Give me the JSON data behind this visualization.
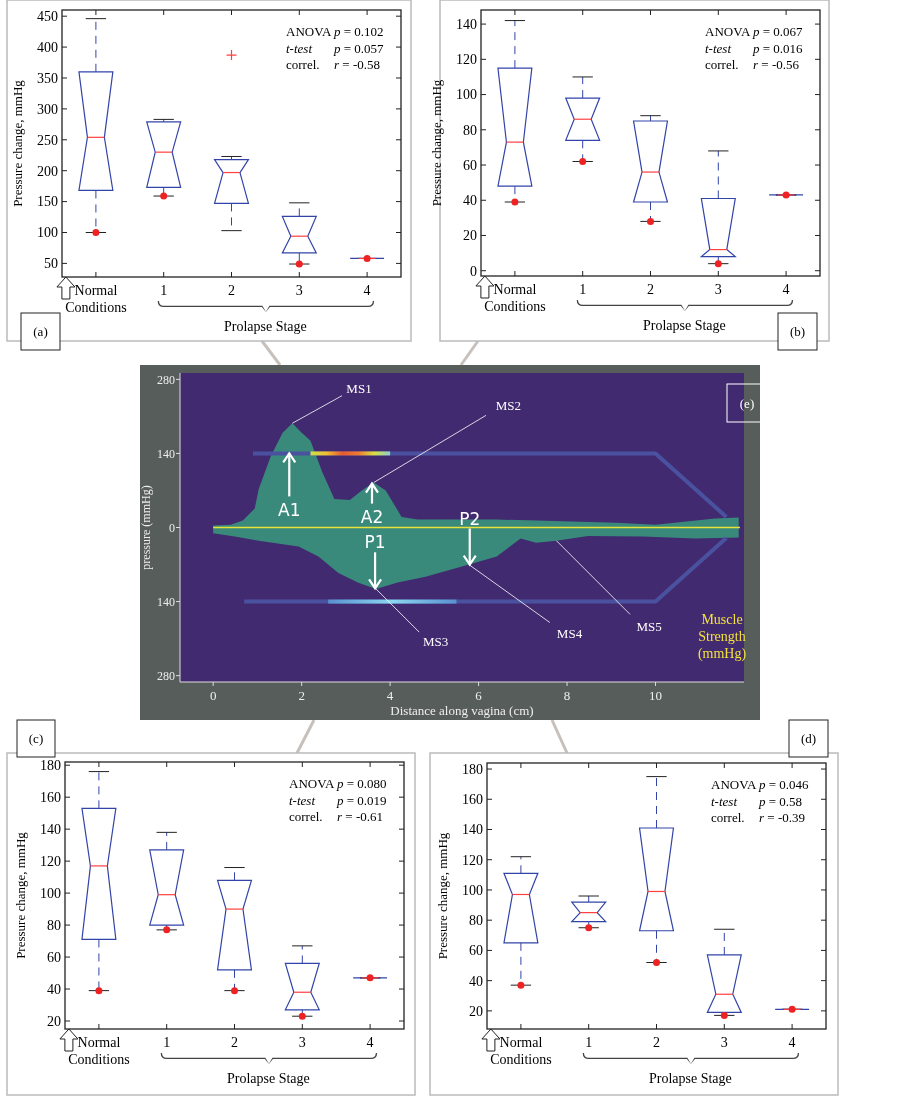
{
  "chart_data": [
    {
      "type": "box",
      "ylabel": "Pressure change, mmHg",
      "categories": [
        "Normal Conditions",
        "1",
        "2",
        "3",
        "4"
      ],
      "ylim": [
        28,
        460
      ],
      "yticks": [
        50,
        100,
        150,
        200,
        250,
        300,
        350,
        400,
        450
      ],
      "series": [
        {
          "type": "box",
          "color": "#3344a8",
          "boxes": [
            {
              "low": 100,
              "q1": 168,
              "median": 254,
              "q3": 360,
              "high": 446
            },
            {
              "low": 159,
              "q1": 173,
              "median": 230,
              "q3": 279,
              "high": 283
            },
            {
              "low": 103,
              "q1": 147,
              "median": 197,
              "q3": 218,
              "high": 223,
              "outliers": [
                387
              ]
            },
            {
              "low": 49,
              "q1": 67,
              "median": 94,
              "q3": 126,
              "high": 148
            },
            {
              "low": 58,
              "q1": 58,
              "median": 58,
              "q3": 58,
              "high": 58
            }
          ]
        },
        {
          "type": "scatter",
          "color": "#ee2222",
          "marker": "circle",
          "x": [
            "Normal Conditions",
            "1",
            "3",
            "4"
          ],
          "values": [
            100,
            159,
            49,
            58
          ]
        }
      ],
      "annotations": [
        "ANOVA p = 0.102",
        "t-test p = 0.057",
        "correl. r = -0.58",
        "Prolapse Stage",
        "(a)"
      ]
    },
    {
      "type": "box",
      "ylabel": "Pressure change, mmHg",
      "categories": [
        "Normal Conditions",
        "1",
        "2",
        "3",
        "4"
      ],
      "ylim": [
        -3,
        148
      ],
      "yticks": [
        0,
        20,
        40,
        60,
        80,
        100,
        120,
        140
      ],
      "series": [
        {
          "type": "box",
          "color": "#3344a8",
          "boxes": [
            {
              "low": 39,
              "q1": 48,
              "median": 73,
              "q3": 115,
              "high": 142
            },
            {
              "low": 62,
              "q1": 74,
              "median": 86,
              "q3": 98,
              "high": 110
            },
            {
              "low": 28,
              "q1": 39,
              "median": 56,
              "q3": 85,
              "high": 88
            },
            {
              "low": 4,
              "q1": 8,
              "median": 12,
              "q3": 41,
              "high": 68
            },
            {
              "low": 43,
              "q1": 43,
              "median": 43,
              "q3": 43,
              "high": 43
            }
          ]
        },
        {
          "type": "scatter",
          "color": "#ee2222",
          "marker": "circle",
          "x": [
            "Normal Conditions",
            "1",
            "2",
            "3",
            "4"
          ],
          "values": [
            39,
            62,
            28,
            4,
            43
          ]
        }
      ],
      "annotations": [
        "ANOVA p = 0.067",
        "t-test p = 0.016",
        "correl. r = -0.56",
        "Prolapse Stage",
        "(b)"
      ]
    },
    {
      "type": "area",
      "xlabel": "Distance along vagina (cm)",
      "ylabel": "pressure (mmHg)",
      "xlim": [
        -0.75,
        12
      ],
      "xticks": [
        0,
        2,
        4,
        6,
        8,
        10
      ],
      "ylim": [
        -292,
        292
      ],
      "yticks": [
        {
          "value": 280,
          "label": "280"
        },
        140,
        0,
        {
          "value": -140,
          "label": "140"
        },
        {
          "value": -280,
          "label": "280"
        }
      ],
      "series": [
        {
          "color": "#3a8a7c",
          "x": [
            0,
            0.4,
            0.67,
            0.94,
            1.03,
            1.3,
            1.57,
            1.79,
            2.0,
            2.2,
            2.47,
            2.74,
            3.09,
            3.36,
            3.63,
            3.9,
            4.26,
            4.62,
            6.41,
            7.3,
            9.1,
            10.0,
            11.35,
            11.88
          ],
          "values": [
            4,
            5,
            13,
            36,
            73,
            134,
            179,
            197,
            179,
            164,
            104,
            54,
            52,
            70,
            85,
            70,
            20,
            15,
            15,
            13,
            9,
            5,
            17,
            19
          ]
        },
        {
          "color": "#3a8a7c",
          "x": [
            0,
            0.49,
            1.03,
            1.93,
            2.38,
            2.83,
            3.27,
            3.68,
            4.17,
            4.8,
            5.78,
            6.41,
            6.95,
            7.3,
            7.76,
            8.47,
            9.73,
            10.9,
            11.88
          ],
          "values": [
            -11,
            -17,
            -25,
            -36,
            -55,
            -86,
            -104,
            -116,
            -104,
            -93,
            -70,
            -55,
            -21,
            -29,
            -25,
            -16,
            -17,
            -21,
            -19
          ]
        },
        {
          "type": "line",
          "color": "#4a52a0",
          "x": [
            0.9,
            10,
            11.6
          ],
          "values": [
            140,
            140,
            20
          ]
        },
        {
          "type": "line",
          "color": "#4a52a0",
          "x": [
            0.7,
            10,
            11.6
          ],
          "values": [
            -140,
            -140,
            -20
          ]
        }
      ],
      "ref_lines": [
        {
          "axis": "y",
          "value": 0,
          "color": "#e8e23a"
        }
      ],
      "annotations": [
        {
          "text": "MS1",
          "x": 1.79,
          "y": 197
        },
        {
          "text": "MS2",
          "x": 3.63,
          "y": 85
        },
        {
          "text": "MS3",
          "x": 3.68,
          "y": -116
        },
        {
          "text": "MS4",
          "x": 5.78,
          "y": -70
        },
        {
          "text": "MS5",
          "x": 7.76,
          "y": -25
        },
        {
          "text": "A1",
          "x": 1.72,
          "y": 140
        },
        {
          "text": "A2",
          "x": 3.59,
          "y": 83
        },
        {
          "text": "P1",
          "x": 3.66,
          "y": -115
        },
        {
          "text": "P2",
          "x": 5.8,
          "y": -70
        },
        "Muscle Strength (mmHg)",
        "(e)"
      ]
    },
    {
      "type": "box",
      "ylabel": "Pressure change, mmHg",
      "categories": [
        "Normal Conditions",
        "1",
        "2",
        "3",
        "4"
      ],
      "ylim": [
        15,
        182
      ],
      "yticks": [
        20,
        40,
        60,
        80,
        100,
        120,
        140,
        160,
        180
      ],
      "series": [
        {
          "type": "box",
          "color": "#3344a8",
          "boxes": [
            {
              "low": 39,
              "q1": 71,
              "median": 117,
              "q3": 153,
              "high": 176
            },
            {
              "low": 77,
              "q1": 80,
              "median": 99,
              "q3": 127,
              "high": 138
            },
            {
              "low": 39,
              "q1": 52,
              "median": 90,
              "q3": 108,
              "high": 116
            },
            {
              "low": 23,
              "q1": 27,
              "median": 38,
              "q3": 56,
              "high": 67
            },
            {
              "low": 47,
              "q1": 47,
              "median": 47,
              "q3": 47,
              "high": 47
            }
          ]
        },
        {
          "type": "scatter",
          "color": "#ee2222",
          "marker": "circle",
          "x": [
            "Normal Conditions",
            "1",
            "2",
            "3",
            "4"
          ],
          "values": [
            39,
            77,
            39,
            23,
            47
          ]
        }
      ],
      "annotations": [
        "ANOVA p = 0.080",
        "t-test p = 0.019",
        "correl. r = -0.61",
        "Prolapse Stage",
        "(c)"
      ]
    },
    {
      "type": "box",
      "ylabel": "Pressure change, mmHg",
      "categories": [
        "Normal Conditions",
        "1",
        "2",
        "3",
        "4"
      ],
      "ylim": [
        8,
        184
      ],
      "yticks": [
        20,
        40,
        60,
        80,
        100,
        120,
        140,
        160,
        180
      ],
      "series": [
        {
          "type": "box",
          "color": "#3344a8",
          "boxes": [
            {
              "low": 37,
              "q1": 65,
              "median": 97,
              "q3": 111,
              "high": 122
            },
            {
              "low": 75,
              "q1": 79,
              "median": 85,
              "q3": 92,
              "high": 96
            },
            {
              "low": 52,
              "q1": 73,
              "median": 99,
              "q3": 141,
              "high": 175
            },
            {
              "low": 17,
              "q1": 19,
              "median": 31,
              "q3": 57,
              "high": 74
            },
            {
              "low": 21,
              "q1": 21,
              "median": 21,
              "q3": 21,
              "high": 21
            }
          ]
        },
        {
          "type": "scatter",
          "color": "#ee2222",
          "marker": "circle",
          "x": [
            "Normal Conditions",
            "1",
            "2",
            "3",
            "4"
          ],
          "values": [
            37,
            75,
            52,
            17,
            21
          ]
        }
      ],
      "annotations": [
        "ANOVA p = 0.046",
        "t-test p = 0.58",
        "correl. r = -0.39",
        "Prolapse Stage",
        "(d)"
      ]
    }
  ]
}
